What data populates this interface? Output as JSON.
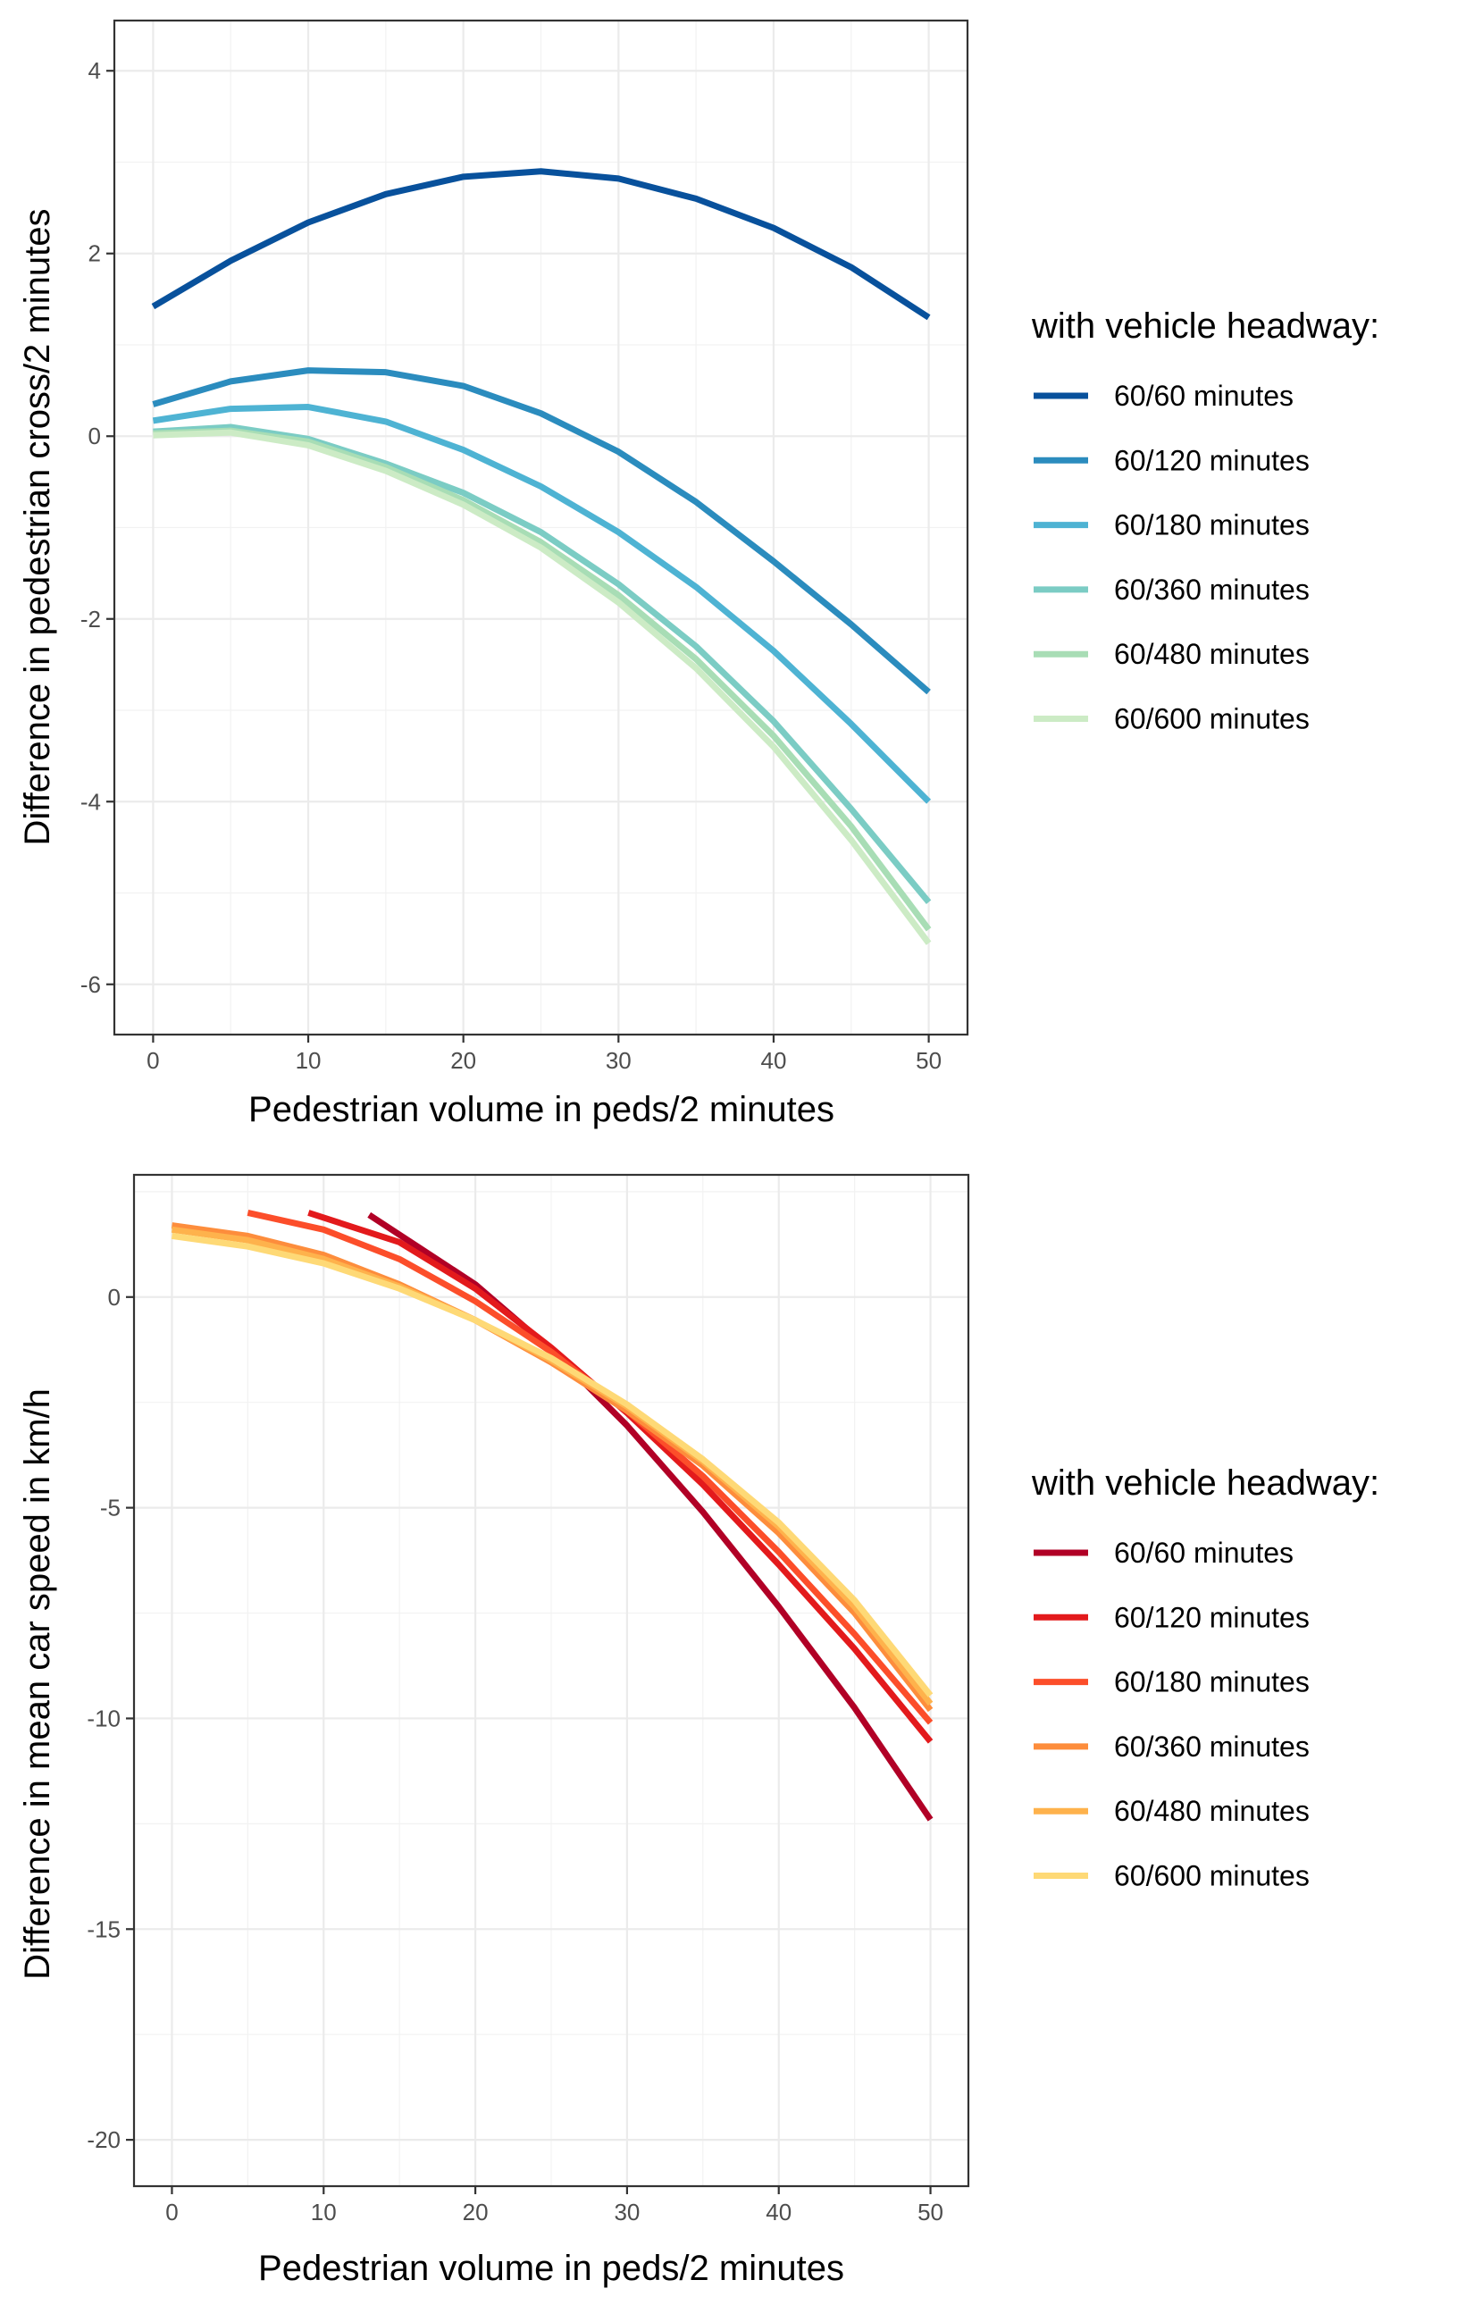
{
  "chart_data": [
    {
      "type": "line",
      "xlabel": "Pedestrian volume in peds/2 minutes",
      "ylabel": "Difference in pedestrian cross/2 minutes",
      "xlim": [
        -2.5,
        52.5
      ],
      "ylim": [
        -6.55,
        4.55
      ],
      "xticks": [
        0,
        10,
        20,
        30,
        40,
        50
      ],
      "yticks": [
        -6,
        -4,
        -2,
        0,
        2,
        4
      ],
      "grid": true,
      "legend_title": "with vehicle headway:",
      "legend_position": "right",
      "series": [
        {
          "name": "60/60 minutes",
          "color": "#08519c",
          "x": [
            0,
            5,
            10,
            15,
            20,
            25,
            30,
            35,
            40,
            45,
            50
          ],
          "y": [
            1.42,
            1.92,
            2.34,
            2.65,
            2.84,
            2.9,
            2.82,
            2.6,
            2.28,
            1.85,
            1.3
          ]
        },
        {
          "name": "60/120 minutes",
          "color": "#2b8cbe",
          "x": [
            0,
            5,
            10,
            15,
            20,
            25,
            30,
            35,
            40,
            45,
            50
          ],
          "y": [
            0.35,
            0.6,
            0.72,
            0.7,
            0.55,
            0.25,
            -0.17,
            -0.72,
            -1.37,
            -2.06,
            -2.8
          ]
        },
        {
          "name": "60/180 minutes",
          "color": "#4eb3d3",
          "x": [
            0,
            5,
            10,
            15,
            20,
            25,
            30,
            35,
            40,
            45,
            50
          ],
          "y": [
            0.17,
            0.3,
            0.32,
            0.16,
            -0.15,
            -0.55,
            -1.05,
            -1.65,
            -2.35,
            -3.15,
            -4.0
          ]
        },
        {
          "name": "60/360 minutes",
          "color": "#7bccc4",
          "x": [
            0,
            5,
            10,
            15,
            20,
            25,
            30,
            35,
            40,
            45,
            50
          ],
          "y": [
            0.05,
            0.1,
            -0.03,
            -0.3,
            -0.62,
            -1.05,
            -1.62,
            -2.3,
            -3.12,
            -4.08,
            -5.1
          ]
        },
        {
          "name": "60/480 minutes",
          "color": "#a8ddb5",
          "x": [
            0,
            5,
            10,
            15,
            20,
            25,
            30,
            35,
            40,
            45,
            50
          ],
          "y": [
            0.03,
            0.06,
            -0.06,
            -0.34,
            -0.7,
            -1.16,
            -1.74,
            -2.44,
            -3.28,
            -4.27,
            -5.4
          ]
        },
        {
          "name": "60/600 minutes",
          "color": "#ccebc5",
          "x": [
            0,
            5,
            10,
            15,
            20,
            25,
            30,
            35,
            40,
            45,
            50
          ],
          "y": [
            0.01,
            0.04,
            -0.1,
            -0.38,
            -0.75,
            -1.22,
            -1.82,
            -2.54,
            -3.4,
            -4.42,
            -5.55
          ]
        }
      ]
    },
    {
      "type": "line",
      "xlabel": "Pedestrian volume in peds/2 minutes",
      "ylabel": "Difference in mean car speed in km/h",
      "xlim": [
        -2.5,
        52.5
      ],
      "ylim": [
        -21.1,
        2.9
      ],
      "xticks": [
        0,
        10,
        20,
        30,
        40,
        50
      ],
      "yticks": [
        -20,
        -15,
        -10,
        -5,
        0
      ],
      "grid": true,
      "legend_title": "with vehicle headway:",
      "legend_position": "right",
      "series": [
        {
          "name": "60/60 minutes",
          "color": "#b10026",
          "x": [
            13,
            20,
            25,
            30,
            35,
            40,
            45,
            50
          ],
          "y": [
            1.95,
            0.3,
            -1.25,
            -3.05,
            -5.1,
            -7.35,
            -9.75,
            -12.4
          ]
        },
        {
          "name": "60/120 minutes",
          "color": "#e31a1c",
          "x": [
            9,
            15,
            20,
            25,
            30,
            35,
            40,
            45,
            50
          ],
          "y": [
            2.0,
            1.3,
            0.2,
            -1.2,
            -2.75,
            -4.45,
            -6.35,
            -8.35,
            -10.55
          ]
        },
        {
          "name": "60/180 minutes",
          "color": "#fc4e2a",
          "x": [
            5,
            10,
            15,
            20,
            25,
            30,
            35,
            40,
            45,
            50
          ],
          "y": [
            2.0,
            1.6,
            0.9,
            -0.1,
            -1.3,
            -2.7,
            -4.25,
            -6.05,
            -8.0,
            -10.1
          ]
        },
        {
          "name": "60/360 minutes",
          "color": "#fd8d3c",
          "x": [
            0,
            5,
            10,
            15,
            20,
            25,
            30,
            35,
            40,
            45,
            50
          ],
          "y": [
            1.7,
            1.45,
            1.0,
            0.3,
            -0.55,
            -1.55,
            -2.7,
            -4.0,
            -5.6,
            -7.5,
            -9.8
          ]
        },
        {
          "name": "60/480 minutes",
          "color": "#feb24c",
          "x": [
            0,
            5,
            10,
            15,
            20,
            25,
            30,
            35,
            40,
            45,
            50
          ],
          "y": [
            1.6,
            1.35,
            0.9,
            0.25,
            -0.55,
            -1.5,
            -2.6,
            -3.9,
            -5.45,
            -7.35,
            -9.65
          ]
        },
        {
          "name": "60/600 minutes",
          "color": "#fed976",
          "x": [
            0,
            5,
            10,
            15,
            20,
            25,
            30,
            35,
            40,
            45,
            50
          ],
          "y": [
            1.45,
            1.2,
            0.8,
            0.2,
            -0.55,
            -1.45,
            -2.55,
            -3.85,
            -5.35,
            -7.2,
            -9.45
          ]
        }
      ]
    }
  ]
}
